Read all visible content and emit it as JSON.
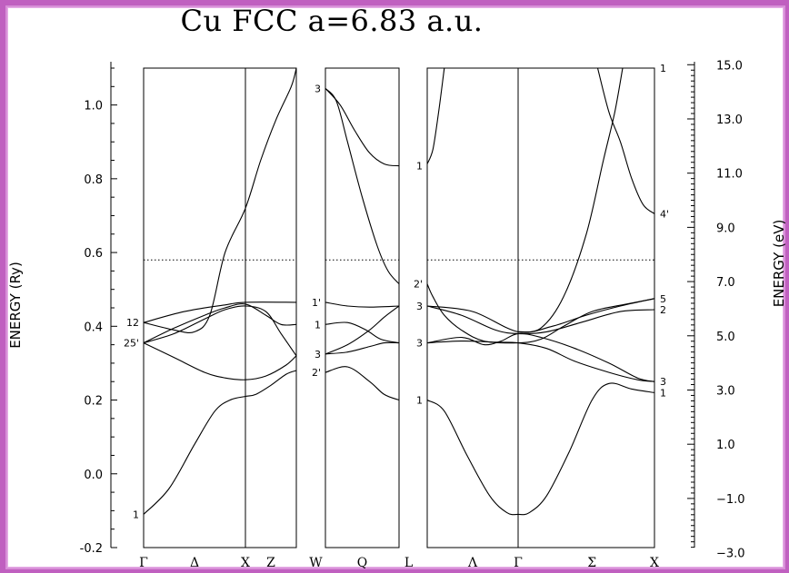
{
  "chart_data": {
    "type": "line",
    "title": "Cu  FCC a=6.83 a.u.",
    "ylabel_left": "ENERGY (Ry)",
    "ylabel_right": "ENERGY (eV)",
    "ylim": [
      -0.2,
      1.1
    ],
    "left_ticks": [
      "1.0",
      "0.8",
      "0.6",
      "0.4",
      "0.2",
      "0.0",
      "-0.2"
    ],
    "left_tick_values": [
      1.0,
      0.8,
      0.6,
      0.4,
      0.2,
      0.0,
      -0.2
    ],
    "right_ticks": [
      "15.0",
      "13.0",
      "11.0",
      "9.0",
      "7.0",
      "5.0",
      "3.0",
      "1.0",
      "−1.0",
      "−3.0"
    ],
    "right_tick_values": [
      15.0,
      13.0,
      11.0,
      9.0,
      7.0,
      5.0,
      3.0,
      1.0,
      -1.0,
      -3.0
    ],
    "fermi_level": 0.58,
    "x_labels": [
      "Γ",
      "Δ",
      "X",
      "Z",
      "W",
      "Q",
      "L",
      "Λ",
      "Γ",
      "Σ",
      "X"
    ],
    "panels": [
      {
        "name": "gamma-x-w",
        "k_range": [
          0,
          1.5
        ],
        "dividers": [
          1.0
        ],
        "x_labels": [
          {
            "t": "Γ",
            "k": 0
          },
          {
            "t": "Δ",
            "k": 0.5
          },
          {
            "t": "X",
            "k": 1.0
          },
          {
            "t": "Z",
            "k": 1.25
          }
        ]
      },
      {
        "name": "w-l",
        "k_range": [
          0,
          1.0
        ],
        "dividers": [],
        "x_labels": [
          {
            "t": "W",
            "k": -0.13
          },
          {
            "t": "Q",
            "k": 0.5
          },
          {
            "t": "L",
            "k": 1.13
          }
        ]
      },
      {
        "name": "l-gamma-x",
        "k_range": [
          0,
          2.0
        ],
        "dividers": [
          0.8
        ],
        "x_labels": [
          {
            "t": "Λ",
            "k": 0.4
          },
          {
            "t": "Γ",
            "k": 0.8
          },
          {
            "t": "Σ",
            "k": 1.45
          },
          {
            "t": "X",
            "k": 2.0
          }
        ]
      }
    ],
    "symmetry_labels": [
      {
        "t": "12",
        "e": 0.41,
        "panel": 0,
        "side": "left"
      },
      {
        "t": "25'",
        "e": 0.355,
        "panel": 0,
        "side": "left"
      },
      {
        "t": "1",
        "e": -0.11,
        "panel": 0,
        "side": "left"
      },
      {
        "t": "3",
        "e": 1.045,
        "panel": 1,
        "side": "left"
      },
      {
        "t": "1'",
        "e": 0.465,
        "panel": 1,
        "side": "left"
      },
      {
        "t": "1",
        "e": 0.405,
        "panel": 1,
        "side": "left"
      },
      {
        "t": "3",
        "e": 0.325,
        "panel": 1,
        "side": "left"
      },
      {
        "t": "2'",
        "e": 0.275,
        "panel": 1,
        "side": "left"
      },
      {
        "t": "1",
        "e": 0.835,
        "panel": 2,
        "side": "left"
      },
      {
        "t": "2'",
        "e": 0.515,
        "panel": 2,
        "side": "left"
      },
      {
        "t": "3",
        "e": 0.455,
        "panel": 2,
        "side": "left"
      },
      {
        "t": "3",
        "e": 0.355,
        "panel": 2,
        "side": "left"
      },
      {
        "t": "1",
        "e": 0.2,
        "panel": 2,
        "side": "left"
      },
      {
        "t": "1",
        "e": 1.1,
        "panel": 2,
        "side": "right"
      },
      {
        "t": "4'",
        "e": 0.705,
        "panel": 2,
        "side": "right"
      },
      {
        "t": "5",
        "e": 0.475,
        "panel": 2,
        "side": "right"
      },
      {
        "t": "2",
        "e": 0.445,
        "panel": 2,
        "side": "right"
      },
      {
        "t": "3",
        "e": 0.25,
        "panel": 2,
        "side": "right"
      },
      {
        "t": "1",
        "e": 0.22,
        "panel": 2,
        "side": "right"
      }
    ],
    "bands": [
      {
        "panel": 0,
        "points": [
          [
            0,
            -0.11
          ],
          [
            0.25,
            -0.04
          ],
          [
            0.5,
            0.08
          ],
          [
            0.7,
            0.17
          ],
          [
            0.85,
            0.2
          ],
          [
            1.0,
            0.21
          ],
          [
            1.1,
            0.215
          ],
          [
            1.25,
            0.24
          ],
          [
            1.4,
            0.27
          ],
          [
            1.5,
            0.28
          ]
        ]
      },
      {
        "panel": 0,
        "points": [
          [
            0,
            0.355
          ],
          [
            0.3,
            0.315
          ],
          [
            0.6,
            0.275
          ],
          [
            0.8,
            0.26
          ],
          [
            1.0,
            0.255
          ],
          [
            1.2,
            0.265
          ],
          [
            1.4,
            0.295
          ],
          [
            1.5,
            0.32
          ]
        ]
      },
      {
        "panel": 0,
        "points": [
          [
            0,
            0.355
          ],
          [
            0.3,
            0.38
          ],
          [
            0.6,
            0.42
          ],
          [
            0.8,
            0.445
          ],
          [
            1.0,
            0.455
          ],
          [
            1.2,
            0.44
          ],
          [
            1.35,
            0.38
          ],
          [
            1.5,
            0.32
          ]
        ]
      },
      {
        "panel": 0,
        "points": [
          [
            0,
            0.41
          ],
          [
            0.3,
            0.39
          ],
          [
            0.5,
            0.385
          ],
          [
            0.65,
            0.43
          ],
          [
            0.8,
            0.6
          ],
          [
            1.0,
            0.72
          ],
          [
            1.15,
            0.85
          ],
          [
            1.3,
            0.96
          ],
          [
            1.45,
            1.05
          ],
          [
            1.5,
            1.1
          ]
        ]
      },
      {
        "panel": 0,
        "points": [
          [
            0,
            0.355
          ],
          [
            0.3,
            0.395
          ],
          [
            0.6,
            0.43
          ],
          [
            0.8,
            0.45
          ],
          [
            1.0,
            0.46
          ],
          [
            1.2,
            0.43
          ],
          [
            1.35,
            0.405
          ],
          [
            1.5,
            0.405
          ]
        ]
      },
      {
        "panel": 0,
        "points": [
          [
            0,
            0.41
          ],
          [
            0.4,
            0.44
          ],
          [
            0.8,
            0.458
          ],
          [
            1.0,
            0.465
          ],
          [
            1.5,
            0.465
          ]
        ]
      },
      {
        "panel": 0,
        "points": [
          [
            1.0,
            1.1
          ],
          [
            1.2,
            1.1
          ],
          [
            1.35,
            1.1
          ],
          [
            1.5,
            1.1
          ]
        ]
      },
      {
        "panel": 1,
        "points": [
          [
            0,
            1.045
          ],
          [
            0.2,
            1.0
          ],
          [
            0.4,
            0.93
          ],
          [
            0.6,
            0.87
          ],
          [
            0.8,
            0.84
          ],
          [
            1.0,
            0.835
          ]
        ]
      },
      {
        "panel": 1,
        "points": [
          [
            0,
            1.045
          ],
          [
            0.15,
            1.01
          ],
          [
            0.3,
            0.9
          ],
          [
            0.5,
            0.75
          ],
          [
            0.7,
            0.62
          ],
          [
            0.85,
            0.55
          ],
          [
            1.0,
            0.515
          ]
        ]
      },
      {
        "panel": 1,
        "points": [
          [
            0,
            0.465
          ],
          [
            0.3,
            0.455
          ],
          [
            0.6,
            0.452
          ],
          [
            1.0,
            0.455
          ]
        ]
      },
      {
        "panel": 1,
        "points": [
          [
            0,
            0.405
          ],
          [
            0.3,
            0.41
          ],
          [
            0.55,
            0.39
          ],
          [
            0.75,
            0.365
          ],
          [
            1.0,
            0.355
          ]
        ]
      },
      {
        "panel": 1,
        "points": [
          [
            0,
            0.325
          ],
          [
            0.3,
            0.35
          ],
          [
            0.6,
            0.39
          ],
          [
            0.8,
            0.425
          ],
          [
            1.0,
            0.455
          ]
        ]
      },
      {
        "panel": 1,
        "points": [
          [
            0,
            0.325
          ],
          [
            0.3,
            0.33
          ],
          [
            0.6,
            0.345
          ],
          [
            0.8,
            0.355
          ],
          [
            1.0,
            0.355
          ]
        ]
      },
      {
        "panel": 1,
        "points": [
          [
            0,
            0.275
          ],
          [
            0.3,
            0.29
          ],
          [
            0.6,
            0.25
          ],
          [
            0.8,
            0.215
          ],
          [
            1.0,
            0.2
          ]
        ]
      },
      {
        "panel": 2,
        "points": [
          [
            0,
            0.2
          ],
          [
            0.15,
            0.17
          ],
          [
            0.35,
            0.05
          ],
          [
            0.55,
            -0.06
          ],
          [
            0.7,
            -0.105
          ],
          [
            0.8,
            -0.11
          ],
          [
            0.9,
            -0.105
          ],
          [
            1.05,
            -0.06
          ],
          [
            1.25,
            0.06
          ],
          [
            1.45,
            0.2
          ],
          [
            1.6,
            0.245
          ],
          [
            1.8,
            0.23
          ],
          [
            2.0,
            0.22
          ]
        ]
      },
      {
        "panel": 2,
        "points": [
          [
            0,
            0.355
          ],
          [
            0.3,
            0.36
          ],
          [
            0.6,
            0.357
          ],
          [
            0.8,
            0.355
          ],
          [
            1.05,
            0.34
          ],
          [
            1.3,
            0.305
          ],
          [
            1.6,
            0.275
          ],
          [
            1.85,
            0.255
          ],
          [
            2.0,
            0.25
          ]
        ]
      },
      {
        "panel": 2,
        "points": [
          [
            0,
            0.355
          ],
          [
            0.3,
            0.37
          ],
          [
            0.5,
            0.35
          ],
          [
            0.65,
            0.36
          ],
          [
            0.8,
            0.38
          ],
          [
            1.0,
            0.37
          ],
          [
            1.3,
            0.34
          ],
          [
            1.6,
            0.3
          ],
          [
            1.85,
            0.26
          ],
          [
            2.0,
            0.25
          ]
        ]
      },
      {
        "panel": 2,
        "points": [
          [
            0,
            0.455
          ],
          [
            0.3,
            0.43
          ],
          [
            0.6,
            0.39
          ],
          [
            0.8,
            0.38
          ],
          [
            1.05,
            0.385
          ],
          [
            1.35,
            0.41
          ],
          [
            1.7,
            0.44
          ],
          [
            2.0,
            0.445
          ]
        ]
      },
      {
        "panel": 2,
        "points": [
          [
            0,
            0.455
          ],
          [
            0.4,
            0.44
          ],
          [
            0.8,
            0.385
          ],
          [
            1.1,
            0.4
          ],
          [
            1.4,
            0.43
          ],
          [
            1.7,
            0.455
          ],
          [
            2.0,
            0.475
          ]
        ]
      },
      {
        "panel": 2,
        "points": [
          [
            0,
            0.515
          ],
          [
            0.05,
            0.48
          ],
          [
            0.15,
            0.43
          ],
          [
            0.3,
            0.39
          ],
          [
            0.5,
            0.36
          ],
          [
            0.8,
            0.355
          ],
          [
            1.0,
            0.365
          ],
          [
            1.2,
            0.4
          ],
          [
            1.45,
            0.44
          ],
          [
            1.75,
            0.46
          ],
          [
            2.0,
            0.475
          ]
        ]
      },
      {
        "panel": 2,
        "points": [
          [
            0,
            0.84
          ],
          [
            0.05,
            0.88
          ],
          [
            0.1,
            0.98
          ],
          [
            0.15,
            1.1
          ]
        ]
      },
      {
        "panel": 2,
        "points": [
          [
            0.8,
            0.385
          ],
          [
            1.0,
            0.395
          ],
          [
            1.2,
            0.48
          ],
          [
            1.4,
            0.65
          ],
          [
            1.55,
            0.85
          ],
          [
            1.65,
            0.98
          ],
          [
            1.72,
            1.1
          ]
        ]
      },
      {
        "panel": 2,
        "points": [
          [
            1.5,
            1.1
          ],
          [
            1.6,
            0.98
          ],
          [
            1.7,
            0.9
          ],
          [
            1.8,
            0.8
          ],
          [
            1.9,
            0.73
          ],
          [
            2.0,
            0.705
          ]
        ]
      },
      {
        "panel": 2,
        "points": [
          [
            1.75,
            1.1
          ],
          [
            1.85,
            1.1
          ],
          [
            2.0,
            1.1
          ]
        ]
      }
    ]
  }
}
